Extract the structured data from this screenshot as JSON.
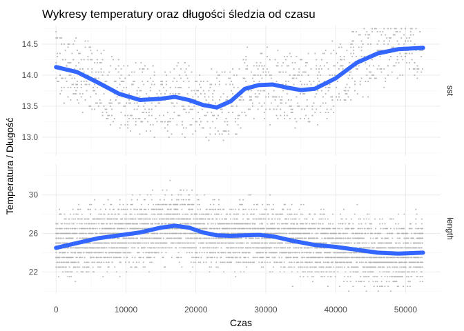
{
  "chart_data": {
    "type": "scatter",
    "title": "Wykresy temperatury oraz długości śledzia od czasu",
    "xlabel": "Czas",
    "ylabel": "Temperatura / Długość",
    "xlim": [
      -2000,
      55000
    ],
    "xticks": [
      0,
      10000,
      20000,
      30000,
      40000,
      50000
    ],
    "xtick_labels": [
      "0",
      "10000",
      "20000",
      "30000",
      "40000",
      "50000"
    ],
    "grid": true,
    "point_color": "#b3b3b3",
    "smooth_color": "#3366ff",
    "panels": [
      {
        "strip": "sst",
        "ylim": [
          12.7,
          14.8
        ],
        "yticks": [
          13.0,
          13.5,
          14.0,
          14.5
        ],
        "ytick_labels": [
          "13.0",
          "13.5",
          "14.0",
          "14.5"
        ],
        "smooth": {
          "x": [
            0,
            3000,
            6000,
            9000,
            12000,
            15000,
            17000,
            19000,
            21000,
            23000,
            25000,
            27000,
            29000,
            31000,
            33000,
            35000,
            37000,
            40000,
            43000,
            46000,
            49000,
            52500
          ],
          "y": [
            14.13,
            14.05,
            13.88,
            13.7,
            13.6,
            13.62,
            13.65,
            13.6,
            13.52,
            13.48,
            13.58,
            13.78,
            13.84,
            13.85,
            13.8,
            13.76,
            13.78,
            13.95,
            14.2,
            14.35,
            14.42,
            14.44
          ]
        },
        "points_summary": {
          "x_range": [
            0,
            52500
          ],
          "y_range": [
            12.75,
            14.75
          ],
          "note": ""
        }
      },
      {
        "strip": "length",
        "ylim": [
          19.8,
          33.2
        ],
        "yticks": [
          22,
          26,
          30
        ],
        "ytick_labels": [
          "22",
          "26",
          "30"
        ],
        "smooth": {
          "x": [
            0,
            3000,
            6000,
            9000,
            12000,
            15000,
            17000,
            19000,
            21000,
            23000,
            25000,
            27000,
            29000,
            31000,
            34000,
            37000,
            40000,
            43000,
            46000,
            49000,
            52500
          ],
          "y": [
            24.5,
            25.0,
            25.5,
            25.8,
            26.1,
            26.6,
            26.8,
            26.6,
            26.1,
            25.8,
            25.75,
            25.8,
            25.85,
            25.7,
            25.2,
            24.8,
            24.6,
            24.3,
            24.0,
            23.9,
            24.0
          ]
        },
        "points_summary": {
          "x_range": [
            0,
            52500
          ],
          "y_range": [
            20.0,
            32.5
          ],
          "note": ""
        }
      }
    ]
  }
}
